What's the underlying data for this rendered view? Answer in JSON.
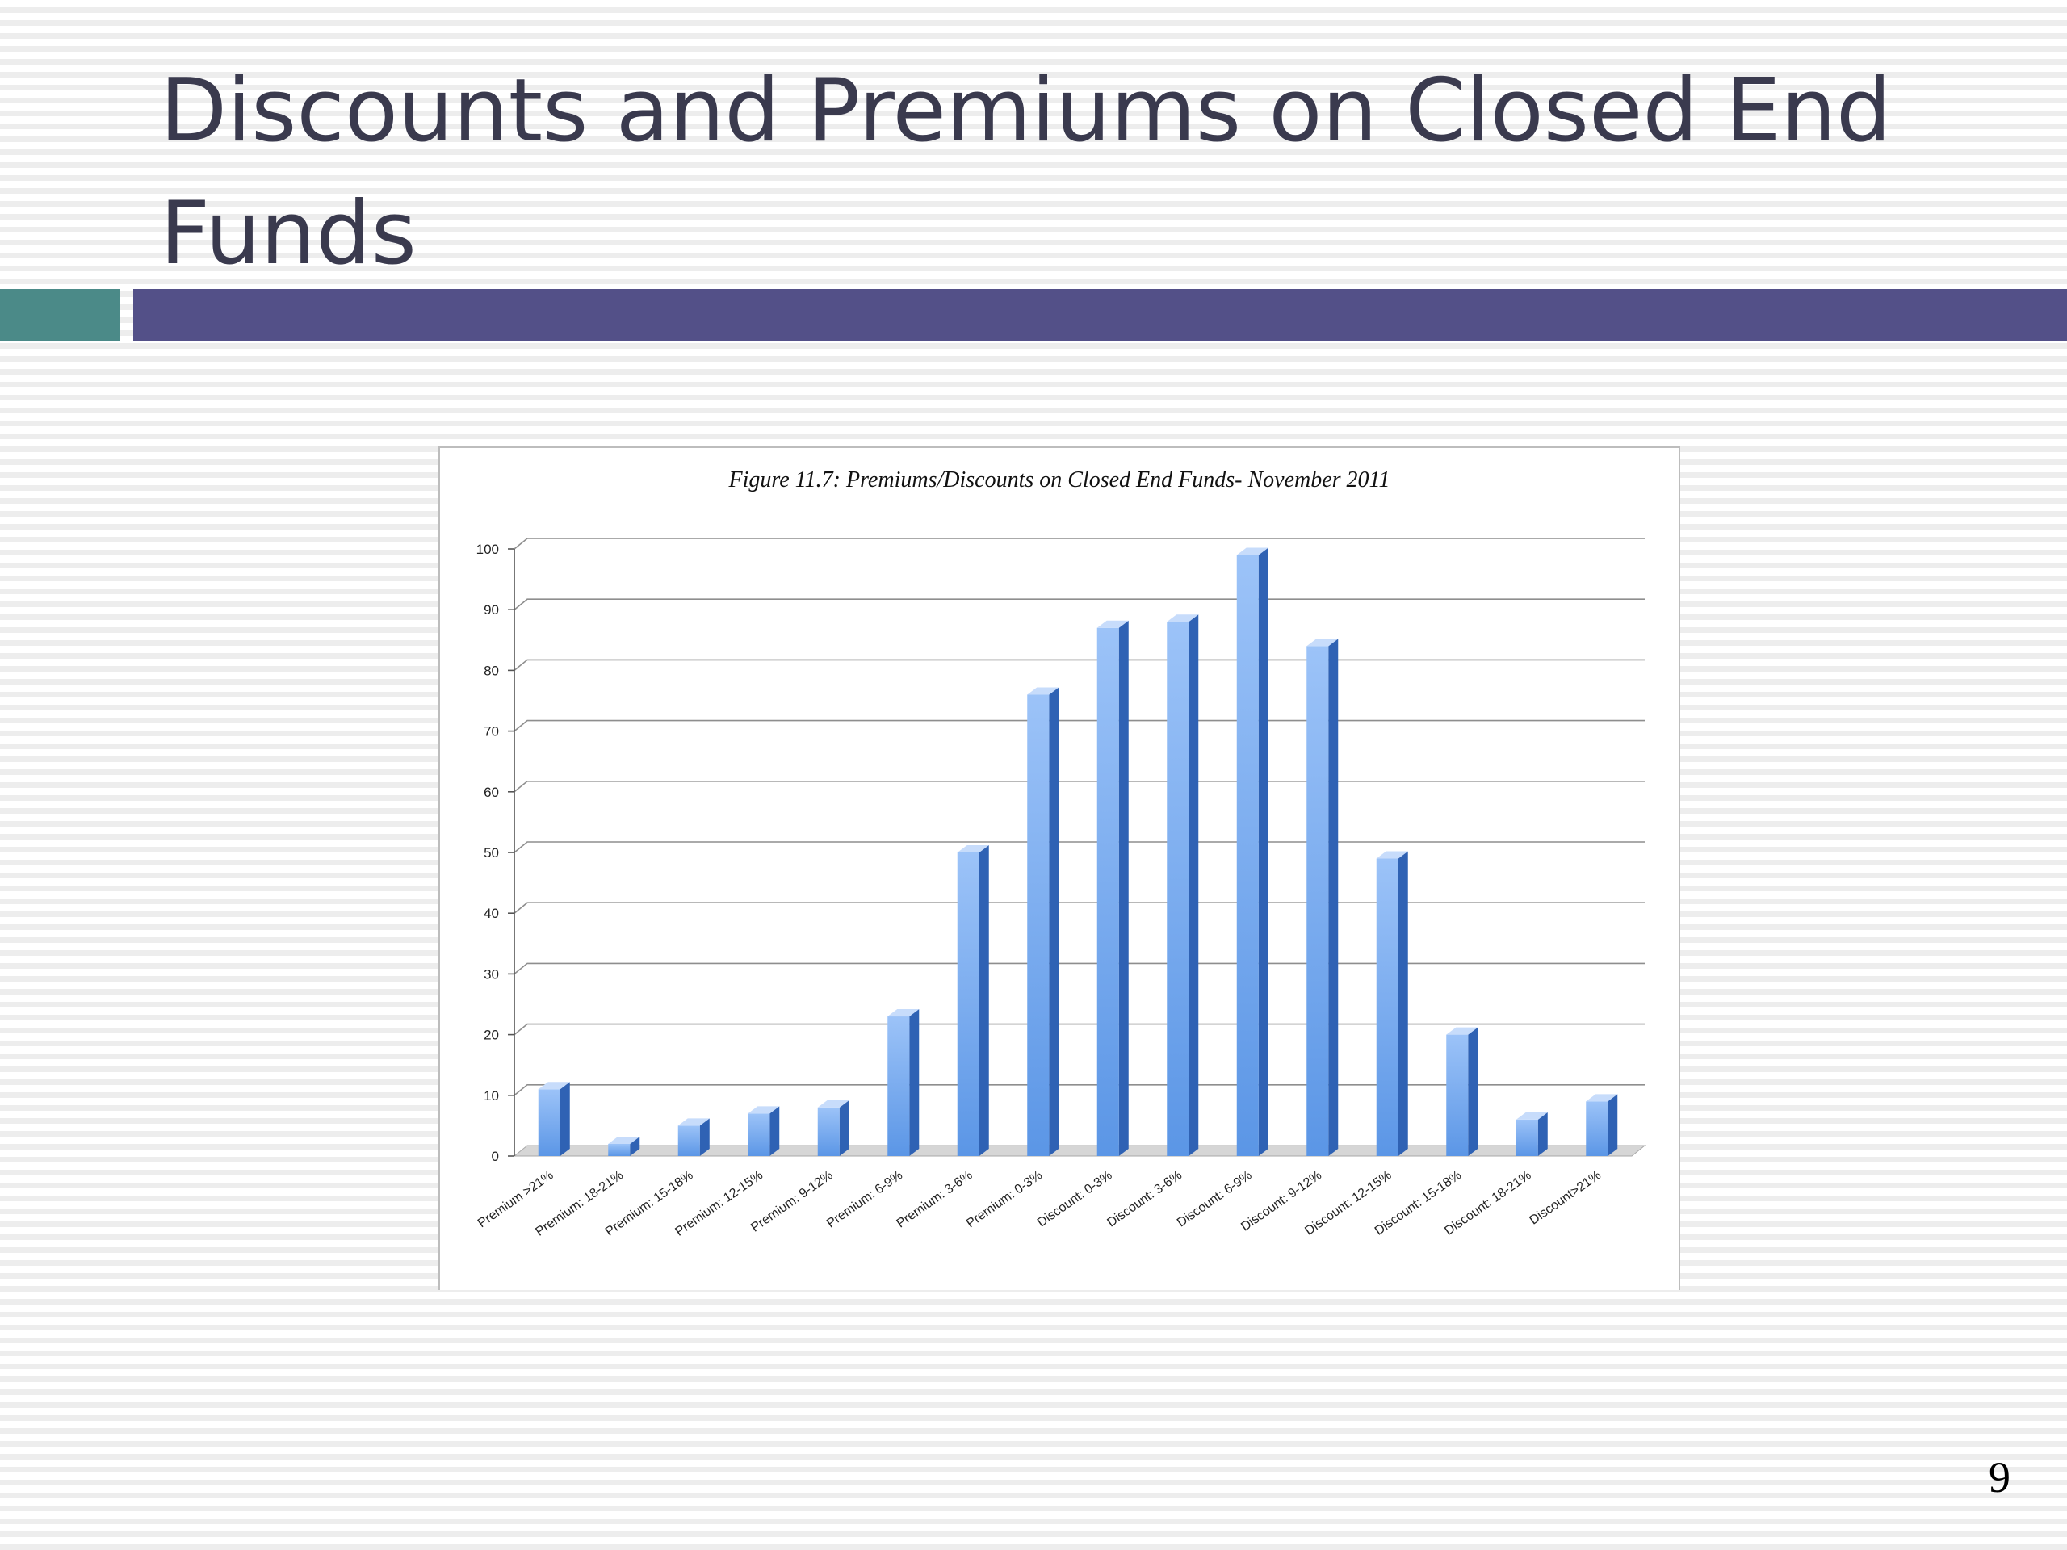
{
  "slide": {
    "title": "Discounts and Premiums on Closed End Funds",
    "page_number": "9"
  },
  "colors": {
    "accent_teal": "#4b8a88",
    "title_bar_purple": "#535088",
    "bar_light": "#9cc3f8",
    "bar_mid": "#5b96e6",
    "bar_dark": "#2f62b4",
    "gridline": "#8e8e8e"
  },
  "chart_data": {
    "type": "bar",
    "title": "Figure 11.7: Premiums/Discounts on Closed End Funds- November 2011",
    "xlabel": "",
    "ylabel": "",
    "ylim": [
      0,
      100
    ],
    "y_ticks": [
      0,
      10,
      20,
      30,
      40,
      50,
      60,
      70,
      80,
      90,
      100
    ],
    "grid": true,
    "legend": "none",
    "categories": [
      "Premium >21%",
      "Premium: 18-21%",
      "Premium: 15-18%",
      "Premium: 12-15%",
      "Premium: 9-12%",
      "Premium: 6-9%",
      "Premium: 3-6%",
      "Premium: 0-3%",
      "Discount: 0-3%",
      "Discount: 3-6%",
      "Discount: 6-9%",
      "Discount: 9-12%",
      "Discount: 12-15%",
      "Discount: 15-18%",
      "Discount: 18-21%",
      "Discount>21%"
    ],
    "values": [
      11,
      2,
      5,
      7,
      8,
      23,
      50,
      76,
      87,
      88,
      99,
      84,
      49,
      20,
      6,
      9
    ]
  }
}
